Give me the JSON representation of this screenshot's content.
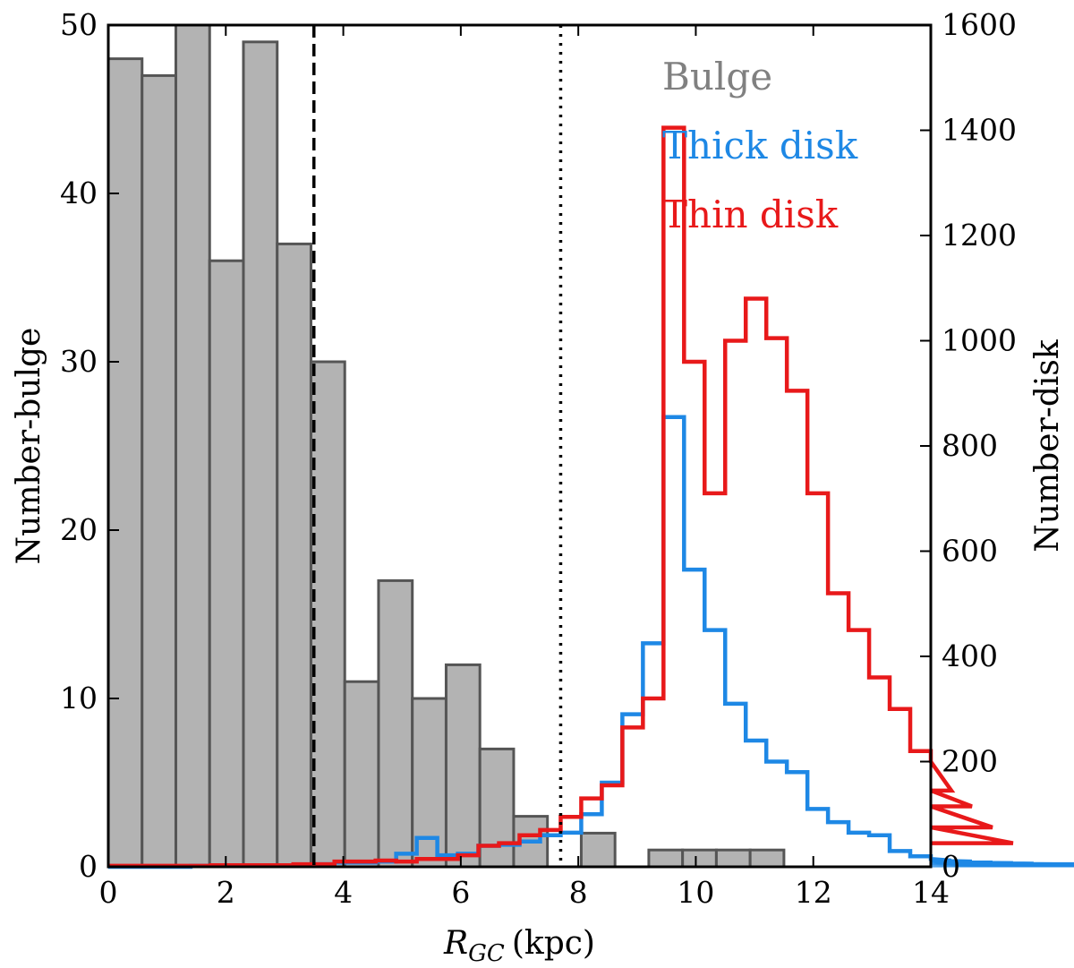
{
  "chart_data": {
    "type": "histogram",
    "xlabel": "R_GC (kpc)",
    "xlabel_symbol": "R",
    "xlabel_subscript": "GC",
    "xlabel_unit": "(kpc)",
    "ylabel_left": "Number-bulge",
    "ylabel_right": "Number-disk",
    "xlim": [
      0,
      14
    ],
    "ylim_left": [
      0,
      50
    ],
    "ylim_right": [
      0,
      1600
    ],
    "x_ticks": [
      "0",
      "2",
      "4",
      "6",
      "8",
      "10",
      "12",
      "14"
    ],
    "y_left_ticks": [
      "0",
      "10",
      "20",
      "30",
      "40",
      "50"
    ],
    "y_right_ticks": [
      "0",
      "200",
      "400",
      "600",
      "800",
      "1000",
      "1200",
      "1400",
      "1600"
    ],
    "vlines": [
      {
        "x": 3.5,
        "style": "dashed"
      },
      {
        "x": 7.7,
        "style": "dotted"
      }
    ],
    "legend": [
      {
        "label": "Bulge",
        "color": "#808080"
      },
      {
        "label": "Thick disk",
        "color": "#1e88e5"
      },
      {
        "label": "Thin disk",
        "color": "#e8191a"
      }
    ],
    "series": [
      {
        "name": "Bulge",
        "axis": "left",
        "style": "bar",
        "fill": "#b3b3b3",
        "edge": "#555555",
        "bin_edges": [
          0,
          0.575,
          1.15,
          1.725,
          2.3,
          2.875,
          3.45,
          4.025,
          4.6,
          5.175,
          5.75,
          6.325,
          6.9,
          7.475,
          8.05,
          8.625,
          9.2,
          9.775,
          10.35,
          10.925,
          11.5
        ],
        "values": [
          48,
          47,
          50,
          36,
          49,
          37,
          30,
          11,
          17,
          10,
          12,
          7,
          3,
          0,
          2,
          0,
          1,
          1,
          1,
          1
        ]
      },
      {
        "name": "Thick disk",
        "axis": "right",
        "style": "step",
        "color": "#1e88e5",
        "bin_width": 0.35,
        "x_start": 0,
        "values": [
          0,
          0,
          0,
          0,
          2,
          3,
          3,
          3,
          3,
          4,
          5,
          8,
          8,
          10,
          25,
          55,
          22,
          25,
          40,
          42,
          48,
          60,
          65,
          100,
          160,
          290,
          425,
          855,
          565,
          450,
          310,
          240,
          200,
          180,
          110,
          85,
          65,
          60,
          30,
          20,
          15,
          12,
          10,
          8,
          7,
          6,
          5,
          5,
          4,
          3
        ]
      },
      {
        "name": "Thin disk",
        "axis": "right",
        "style": "step",
        "color": "#e8191a",
        "bin_width": 0.35,
        "x_start": 0,
        "values": [
          2,
          2,
          2,
          2,
          2,
          3,
          3,
          3,
          3,
          5,
          5,
          10,
          10,
          12,
          10,
          15,
          15,
          22,
          40,
          45,
          60,
          70,
          95,
          130,
          155,
          265,
          320,
          1405,
          960,
          710,
          1000,
          1080,
          1005,
          905,
          710,
          520,
          450,
          360,
          300,
          220,
          200,
          145,
          115,
          75,
          45
        ]
      }
    ]
  }
}
